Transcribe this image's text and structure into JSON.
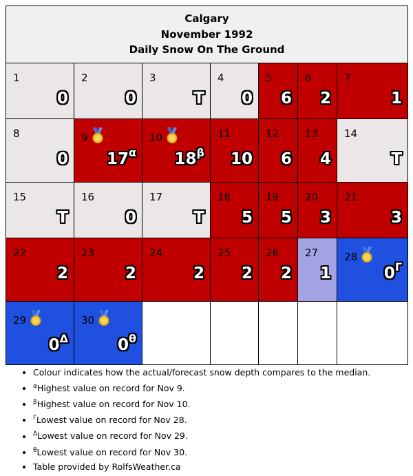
{
  "header": {
    "city": "Calgary",
    "month": "November 1992",
    "subtitle": "Daily Snow On The Ground"
  },
  "colors": {
    "above": "#c00000",
    "trace": "#ebe6e8",
    "below": "#a3a3e3",
    "record_low": "#2050e0",
    "empty": "#ffffff"
  },
  "icons": {
    "record": "medal-icon"
  },
  "rows": [
    [
      {
        "day": "1",
        "value": "0",
        "sup": "",
        "status": "trace",
        "medal": false
      },
      {
        "day": "2",
        "value": "0",
        "sup": "",
        "status": "trace",
        "medal": false
      },
      {
        "day": "3",
        "value": "T",
        "sup": "",
        "status": "trace",
        "medal": false
      },
      {
        "day": "4",
        "value": "0",
        "sup": "",
        "status": "trace",
        "medal": false
      },
      {
        "day": "5",
        "value": "6",
        "sup": "",
        "status": "above",
        "medal": false
      },
      {
        "day": "6",
        "value": "2",
        "sup": "",
        "status": "above",
        "medal": false
      },
      {
        "day": "7",
        "value": "1",
        "sup": "",
        "status": "above",
        "medal": false
      }
    ],
    [
      {
        "day": "8",
        "value": "0",
        "sup": "",
        "status": "trace",
        "medal": false
      },
      {
        "day": "9",
        "value": "17",
        "sup": "α",
        "status": "above",
        "medal": true
      },
      {
        "day": "10",
        "value": "18",
        "sup": "β",
        "status": "above",
        "medal": true
      },
      {
        "day": "11",
        "value": "10",
        "sup": "",
        "status": "above",
        "medal": false
      },
      {
        "day": "12",
        "value": "6",
        "sup": "",
        "status": "above",
        "medal": false
      },
      {
        "day": "13",
        "value": "4",
        "sup": "",
        "status": "above",
        "medal": false
      },
      {
        "day": "14",
        "value": "T",
        "sup": "",
        "status": "trace",
        "medal": false
      }
    ],
    [
      {
        "day": "15",
        "value": "T",
        "sup": "",
        "status": "trace",
        "medal": false
      },
      {
        "day": "16",
        "value": "0",
        "sup": "",
        "status": "trace",
        "medal": false
      },
      {
        "day": "17",
        "value": "T",
        "sup": "",
        "status": "trace",
        "medal": false
      },
      {
        "day": "18",
        "value": "5",
        "sup": "",
        "status": "above",
        "medal": false
      },
      {
        "day": "19",
        "value": "5",
        "sup": "",
        "status": "above",
        "medal": false
      },
      {
        "day": "20",
        "value": "3",
        "sup": "",
        "status": "above",
        "medal": false
      },
      {
        "day": "21",
        "value": "3",
        "sup": "",
        "status": "above",
        "medal": false
      }
    ],
    [
      {
        "day": "22",
        "value": "2",
        "sup": "",
        "status": "above",
        "medal": false
      },
      {
        "day": "23",
        "value": "2",
        "sup": "",
        "status": "above",
        "medal": false
      },
      {
        "day": "24",
        "value": "2",
        "sup": "",
        "status": "above",
        "medal": false
      },
      {
        "day": "25",
        "value": "2",
        "sup": "",
        "status": "above",
        "medal": false
      },
      {
        "day": "26",
        "value": "2",
        "sup": "",
        "status": "above",
        "medal": false
      },
      {
        "day": "27",
        "value": "1",
        "sup": "",
        "status": "below",
        "medal": false
      },
      {
        "day": "28",
        "value": "0",
        "sup": "Γ",
        "status": "record_low",
        "medal": true
      }
    ],
    [
      {
        "day": "29",
        "value": "0",
        "sup": "Δ",
        "status": "record_low",
        "medal": true
      },
      {
        "day": "30",
        "value": "0",
        "sup": "θ",
        "status": "record_low",
        "medal": true
      },
      {
        "day": "",
        "value": "",
        "sup": "",
        "status": "empty",
        "medal": false
      },
      {
        "day": "",
        "value": "",
        "sup": "",
        "status": "empty",
        "medal": false
      },
      {
        "day": "",
        "value": "",
        "sup": "",
        "status": "empty",
        "medal": false
      },
      {
        "day": "",
        "value": "",
        "sup": "",
        "status": "empty",
        "medal": false
      },
      {
        "day": "",
        "value": "",
        "sup": "",
        "status": "empty",
        "medal": false
      }
    ]
  ],
  "notes": [
    {
      "sup": "",
      "text": "Colour indicates how the actual/forecast snow depth compares to the median."
    },
    {
      "sup": "α",
      "text": "Highest value on record for Nov 9."
    },
    {
      "sup": "β",
      "text": "Highest value on record for Nov 10."
    },
    {
      "sup": "Γ",
      "text": "Lowest value on record for Nov 28."
    },
    {
      "sup": "Δ",
      "text": "Lowest value on record for Nov 29."
    },
    {
      "sup": "θ",
      "text": "Lowest value on record for Nov 30."
    },
    {
      "sup": "",
      "text": "Table provided by RolfsWeather.ca"
    }
  ]
}
